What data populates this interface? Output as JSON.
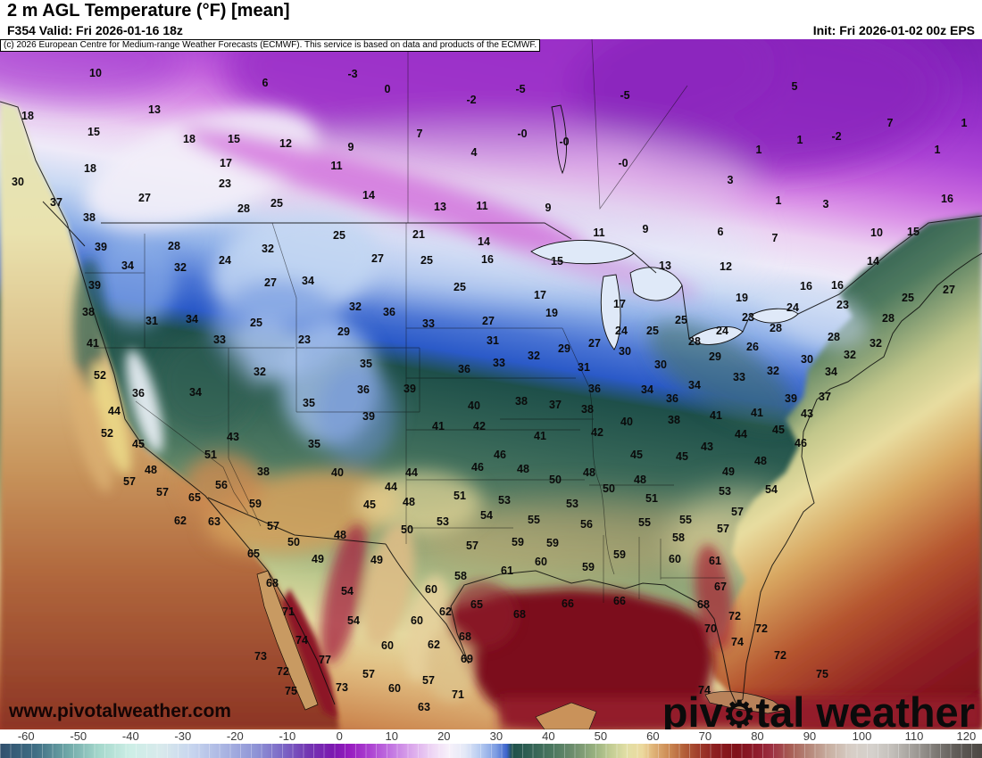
{
  "header": {
    "title": "2 m AGL Temperature (°F) [mean]",
    "valid": "F354 Valid: Fri 2026-01-16 18z",
    "init": "Init: Fri 2026-01-02 00z EPS"
  },
  "copyright": "(c) 2026 European Centre for Medium-range Weather Forecasts (ECMWF). This service is based on data and products of the ECMWF.",
  "watermark": {
    "site": "www.pivotalweather.com",
    "brand_pre": "piv",
    "brand_gear": "⚙",
    "brand_post": "tal weather"
  },
  "chart_data": {
    "type": "heatmap",
    "title": "2 m AGL Temperature (°F) [mean]",
    "units": "°F",
    "legend_position": "bottom",
    "colorbar": {
      "min": -65,
      "max": 123,
      "ticks": [
        -60,
        -50,
        -40,
        -30,
        -20,
        -10,
        0,
        10,
        20,
        30,
        40,
        50,
        60,
        70,
        80,
        90,
        100,
        110,
        120
      ],
      "stops": [
        [
          -65,
          "#31506e"
        ],
        [
          -58,
          "#3f6f85"
        ],
        [
          -52,
          "#6fa8a8"
        ],
        [
          -46,
          "#a5d8cc"
        ],
        [
          -40,
          "#cdeee6"
        ],
        [
          -34,
          "#d8e9ec"
        ],
        [
          -28,
          "#c6d4ee"
        ],
        [
          -22,
          "#a9b4e2"
        ],
        [
          -16,
          "#8f94d6"
        ],
        [
          -11,
          "#7c68c6"
        ],
        [
          -6,
          "#7336b2"
        ],
        [
          -1,
          "#7c17b0"
        ],
        [
          2,
          "#981cc0"
        ],
        [
          6,
          "#ad44d2"
        ],
        [
          10,
          "#c377e2"
        ],
        [
          14,
          "#dcaaec"
        ],
        [
          18,
          "#efd9f5"
        ],
        [
          21,
          "#f7f1fa"
        ],
        [
          24,
          "#e4e9f7"
        ],
        [
          27,
          "#b4c9f0"
        ],
        [
          30,
          "#7c9ce2"
        ],
        [
          32,
          "#3c64cc"
        ],
        [
          33,
          "#1e504a"
        ],
        [
          37,
          "#346456"
        ],
        [
          41,
          "#4d7960"
        ],
        [
          45,
          "#6f8f6e"
        ],
        [
          49,
          "#9ab380"
        ],
        [
          52,
          "#c3cd94"
        ],
        [
          55,
          "#e2dfa6"
        ],
        [
          58,
          "#ecd99e"
        ],
        [
          60,
          "#e0b478"
        ],
        [
          63,
          "#cc8a54"
        ],
        [
          66,
          "#b25e38"
        ],
        [
          69,
          "#9e3a2a"
        ],
        [
          72,
          "#8c1e20"
        ],
        [
          76,
          "#801119"
        ],
        [
          80,
          "#8f1c2c"
        ],
        [
          83,
          "#9e3244"
        ],
        [
          86,
          "#a65a52"
        ],
        [
          90,
          "#b6887a"
        ],
        [
          94,
          "#c9b2a4"
        ],
        [
          98,
          "#d7cec6"
        ],
        [
          102,
          "#d5d1cc"
        ],
        [
          106,
          "#c1bdb8"
        ],
        [
          110,
          "#a19d98"
        ],
        [
          114,
          "#7f7b76"
        ],
        [
          118,
          "#605c58"
        ],
        [
          123,
          "#4b4743"
        ]
      ]
    },
    "station_values": [
      [
        107,
        82,
        "10"
      ],
      [
        297,
        93,
        "6"
      ],
      [
        395,
        83,
        "-3"
      ],
      [
        434,
        100,
        "0"
      ],
      [
        528,
        112,
        "-2"
      ],
      [
        583,
        100,
        "-5"
      ],
      [
        700,
        107,
        "-5"
      ],
      [
        890,
        97,
        "5"
      ],
      [
        997,
        138,
        "7"
      ],
      [
        1080,
        138,
        "1"
      ],
      [
        31,
        130,
        "18"
      ],
      [
        173,
        123,
        "13"
      ],
      [
        105,
        148,
        "15"
      ],
      [
        212,
        156,
        "18"
      ],
      [
        262,
        156,
        "15"
      ],
      [
        320,
        161,
        "12"
      ],
      [
        470,
        150,
        "7"
      ],
      [
        393,
        165,
        "9"
      ],
      [
        585,
        150,
        "-0"
      ],
      [
        632,
        159,
        "-0"
      ],
      [
        531,
        171,
        "4"
      ],
      [
        896,
        157,
        "1"
      ],
      [
        937,
        153,
        "-2"
      ],
      [
        850,
        168,
        "1"
      ],
      [
        1050,
        168,
        "1"
      ],
      [
        101,
        189,
        "18"
      ],
      [
        253,
        183,
        "17"
      ],
      [
        377,
        186,
        "11"
      ],
      [
        698,
        183,
        "-0"
      ],
      [
        818,
        202,
        "3"
      ],
      [
        252,
        206,
        "23"
      ],
      [
        20,
        204,
        "30"
      ],
      [
        413,
        219,
        "14"
      ],
      [
        872,
        225,
        "1"
      ],
      [
        925,
        229,
        "3"
      ],
      [
        1061,
        223,
        "16"
      ],
      [
        162,
        222,
        "27"
      ],
      [
        63,
        227,
        "37"
      ],
      [
        273,
        234,
        "28"
      ],
      [
        310,
        228,
        "25"
      ],
      [
        493,
        232,
        "13"
      ],
      [
        540,
        231,
        "11"
      ],
      [
        614,
        233,
        "9"
      ],
      [
        100,
        244,
        "38"
      ],
      [
        195,
        276,
        "28"
      ],
      [
        113,
        277,
        "39"
      ],
      [
        380,
        264,
        "25"
      ],
      [
        469,
        263,
        "21"
      ],
      [
        542,
        271,
        "14"
      ],
      [
        671,
        261,
        "11"
      ],
      [
        723,
        257,
        "9"
      ],
      [
        807,
        260,
        "6"
      ],
      [
        868,
        267,
        "7"
      ],
      [
        982,
        261,
        "10"
      ],
      [
        1023,
        260,
        "15"
      ],
      [
        252,
        292,
        "24"
      ],
      [
        300,
        279,
        "32"
      ],
      [
        143,
        298,
        "34"
      ],
      [
        202,
        300,
        "32"
      ],
      [
        423,
        290,
        "27"
      ],
      [
        478,
        292,
        "25"
      ],
      [
        546,
        291,
        "16"
      ],
      [
        624,
        293,
        "15"
      ],
      [
        745,
        298,
        "13"
      ],
      [
        813,
        299,
        "12"
      ],
      [
        978,
        293,
        "14"
      ],
      [
        106,
        320,
        "39"
      ],
      [
        303,
        317,
        "27"
      ],
      [
        345,
        315,
        "34"
      ],
      [
        515,
        322,
        "25"
      ],
      [
        605,
        331,
        "17"
      ],
      [
        694,
        341,
        "17"
      ],
      [
        903,
        321,
        "16"
      ],
      [
        938,
        320,
        "16"
      ],
      [
        1063,
        325,
        "27"
      ],
      [
        99,
        350,
        "38"
      ],
      [
        170,
        360,
        "31"
      ],
      [
        215,
        358,
        "34"
      ],
      [
        287,
        362,
        "25"
      ],
      [
        398,
        344,
        "32"
      ],
      [
        436,
        350,
        "36"
      ],
      [
        618,
        351,
        "19"
      ],
      [
        831,
        334,
        "19"
      ],
      [
        1017,
        334,
        "25"
      ],
      [
        888,
        345,
        "24"
      ],
      [
        944,
        342,
        "23"
      ],
      [
        480,
        363,
        "33"
      ],
      [
        547,
        360,
        "27"
      ],
      [
        385,
        372,
        "29"
      ],
      [
        696,
        371,
        "24"
      ],
      [
        731,
        371,
        "25"
      ],
      [
        763,
        359,
        "25"
      ],
      [
        838,
        356,
        "23"
      ],
      [
        995,
        357,
        "28"
      ],
      [
        104,
        385,
        "41"
      ],
      [
        246,
        381,
        "33"
      ],
      [
        341,
        381,
        "23"
      ],
      [
        552,
        382,
        "31"
      ],
      [
        632,
        391,
        "29"
      ],
      [
        666,
        385,
        "27"
      ],
      [
        700,
        394,
        "30"
      ],
      [
        598,
        399,
        "32"
      ],
      [
        869,
        368,
        "28"
      ],
      [
        809,
        371,
        "24"
      ],
      [
        778,
        383,
        "28"
      ],
      [
        934,
        378,
        "28"
      ],
      [
        981,
        385,
        "32"
      ],
      [
        843,
        389,
        "26"
      ],
      [
        801,
        400,
        "29"
      ],
      [
        952,
        398,
        "32"
      ],
      [
        904,
        403,
        "30"
      ],
      [
        740,
        409,
        "30"
      ],
      [
        112,
        421,
        "52"
      ],
      [
        291,
        417,
        "32"
      ],
      [
        410,
        408,
        "35"
      ],
      [
        559,
        407,
        "33"
      ],
      [
        654,
        412,
        "31"
      ],
      [
        520,
        414,
        "36"
      ],
      [
        866,
        416,
        "32"
      ],
      [
        931,
        417,
        "34"
      ],
      [
        828,
        423,
        "33"
      ],
      [
        778,
        432,
        "34"
      ],
      [
        155,
        441,
        "36"
      ],
      [
        219,
        440,
        "34"
      ],
      [
        407,
        437,
        "36"
      ],
      [
        459,
        436,
        "39"
      ],
      [
        666,
        436,
        "36"
      ],
      [
        725,
        437,
        "34"
      ],
      [
        346,
        452,
        "35"
      ],
      [
        584,
        450,
        "38"
      ],
      [
        622,
        454,
        "37"
      ],
      [
        531,
        455,
        "40"
      ],
      [
        753,
        447,
        "36"
      ],
      [
        886,
        447,
        "39"
      ],
      [
        924,
        445,
        "37"
      ],
      [
        128,
        461,
        "44"
      ],
      [
        413,
        467,
        "39"
      ],
      [
        658,
        459,
        "38"
      ],
      [
        802,
        466,
        "41"
      ],
      [
        848,
        463,
        "41"
      ],
      [
        904,
        464,
        "43"
      ],
      [
        120,
        486,
        "52"
      ],
      [
        261,
        490,
        "43"
      ],
      [
        491,
        478,
        "41"
      ],
      [
        537,
        478,
        "42"
      ],
      [
        702,
        473,
        "40"
      ],
      [
        605,
        489,
        "41"
      ],
      [
        669,
        485,
        "42"
      ],
      [
        755,
        471,
        "38"
      ],
      [
        830,
        487,
        "44"
      ],
      [
        872,
        482,
        "45"
      ],
      [
        155,
        498,
        "45"
      ],
      [
        352,
        498,
        "35"
      ],
      [
        236,
        510,
        "51"
      ],
      [
        560,
        510,
        "46"
      ],
      [
        713,
        510,
        "45"
      ],
      [
        897,
        497,
        "46"
      ],
      [
        792,
        501,
        "43"
      ],
      [
        169,
        527,
        "48"
      ],
      [
        295,
        529,
        "38"
      ],
      [
        378,
        530,
        "40"
      ],
      [
        535,
        524,
        "46"
      ],
      [
        586,
        526,
        "48"
      ],
      [
        461,
        530,
        "44"
      ],
      [
        660,
        530,
        "48"
      ],
      [
        622,
        538,
        "50"
      ],
      [
        717,
        538,
        "48"
      ],
      [
        438,
        546,
        "44"
      ],
      [
        682,
        548,
        "50"
      ],
      [
        764,
        512,
        "45"
      ],
      [
        852,
        517,
        "48"
      ],
      [
        816,
        529,
        "49"
      ],
      [
        145,
        540,
        "57"
      ],
      [
        248,
        544,
        "56"
      ],
      [
        182,
        552,
        "57"
      ],
      [
        218,
        558,
        "65"
      ],
      [
        515,
        556,
        "51"
      ],
      [
        812,
        551,
        "53"
      ],
      [
        864,
        549,
        "54"
      ],
      [
        730,
        559,
        "51"
      ],
      [
        286,
        565,
        "59"
      ],
      [
        414,
        566,
        "45"
      ],
      [
        458,
        563,
        "48"
      ],
      [
        565,
        561,
        "53"
      ],
      [
        641,
        565,
        "53"
      ],
      [
        202,
        584,
        "62"
      ],
      [
        240,
        585,
        "63"
      ],
      [
        306,
        590,
        "57"
      ],
      [
        496,
        585,
        "53"
      ],
      [
        545,
        578,
        "54"
      ],
      [
        598,
        583,
        "55"
      ],
      [
        657,
        588,
        "56"
      ],
      [
        722,
        586,
        "55"
      ],
      [
        768,
        583,
        "55"
      ],
      [
        826,
        574,
        "57"
      ],
      [
        810,
        593,
        "57"
      ],
      [
        329,
        608,
        "50"
      ],
      [
        381,
        600,
        "48"
      ],
      [
        456,
        594,
        "50"
      ],
      [
        529,
        612,
        "57"
      ],
      [
        580,
        608,
        "59"
      ],
      [
        619,
        609,
        "59"
      ],
      [
        694,
        622,
        "59"
      ],
      [
        760,
        603,
        "58"
      ],
      [
        284,
        621,
        "65"
      ],
      [
        356,
        627,
        "49"
      ],
      [
        422,
        628,
        "49"
      ],
      [
        606,
        630,
        "60"
      ],
      [
        659,
        636,
        "59"
      ],
      [
        568,
        640,
        "61"
      ],
      [
        516,
        646,
        "58"
      ],
      [
        756,
        627,
        "60"
      ],
      [
        801,
        629,
        "61"
      ],
      [
        305,
        654,
        "68"
      ],
      [
        389,
        663,
        "54"
      ],
      [
        483,
        661,
        "60"
      ],
      [
        636,
        677,
        "66"
      ],
      [
        694,
        674,
        "66"
      ],
      [
        534,
        678,
        "65"
      ],
      [
        499,
        686,
        "62"
      ],
      [
        582,
        689,
        "68"
      ],
      [
        807,
        658,
        "67"
      ],
      [
        788,
        678,
        "68"
      ],
      [
        323,
        686,
        "71"
      ],
      [
        396,
        696,
        "54"
      ],
      [
        467,
        696,
        "60"
      ],
      [
        521,
        714,
        "68"
      ],
      [
        434,
        724,
        "60"
      ],
      [
        486,
        723,
        "62"
      ],
      [
        823,
        691,
        "72"
      ],
      [
        796,
        705,
        "70"
      ],
      [
        853,
        705,
        "72"
      ],
      [
        338,
        718,
        "74"
      ],
      [
        292,
        736,
        "73"
      ],
      [
        364,
        740,
        "77"
      ],
      [
        523,
        739,
        "69"
      ],
      [
        826,
        720,
        "74"
      ],
      [
        874,
        735,
        "72"
      ],
      [
        317,
        753,
        "72"
      ],
      [
        413,
        756,
        "57"
      ],
      [
        480,
        763,
        "57"
      ],
      [
        383,
        771,
        "73"
      ],
      [
        442,
        772,
        "60"
      ],
      [
        513,
        779,
        "71"
      ],
      [
        475,
        793,
        "63"
      ],
      [
        326,
        775,
        "75"
      ],
      [
        921,
        756,
        "75"
      ],
      [
        789,
        774,
        "74"
      ]
    ]
  }
}
